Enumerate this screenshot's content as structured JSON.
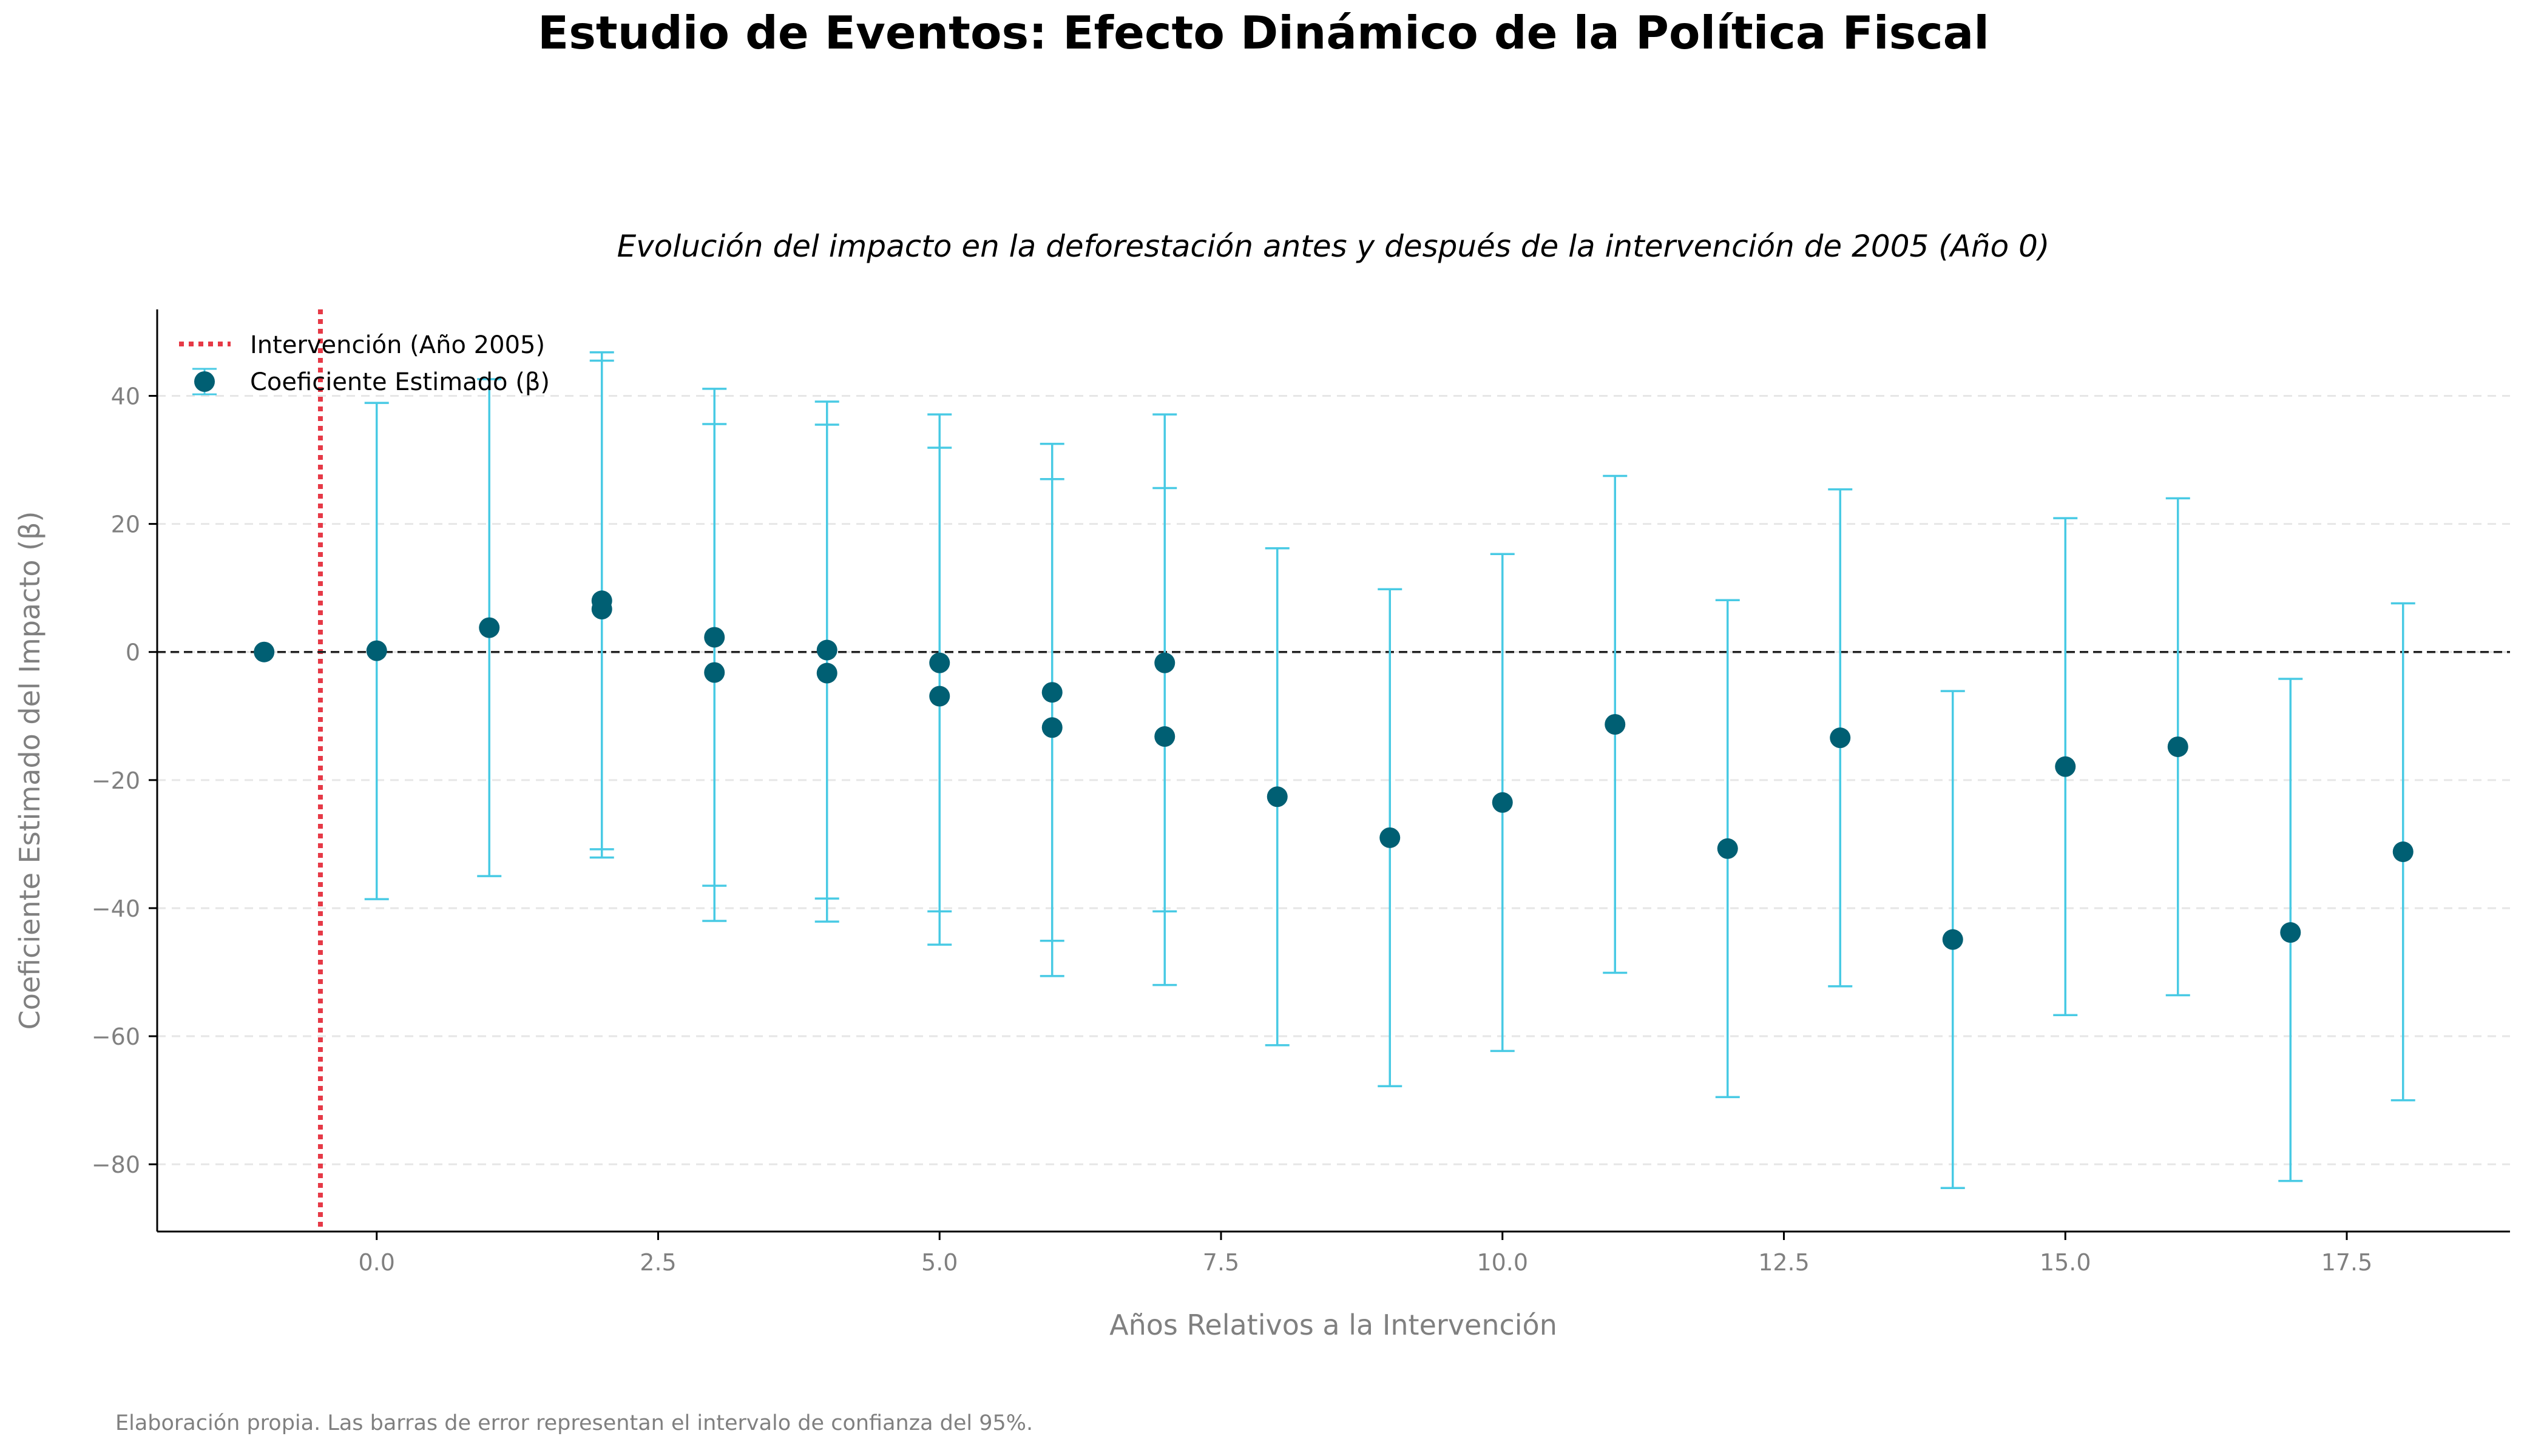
{
  "figure": {
    "title": "Estudio de Eventos: Efecto Dinámico de la Política Fiscal",
    "footnote": "Elaboración propia. Las barras de error representan el intervalo de confianza del 95%."
  },
  "colors": {
    "point": "#005f73",
    "errorbar": "#48cae4",
    "intervention": "#e63946",
    "zero_line": "#222222",
    "grid": "#e6e6e6",
    "axis_text": "#808080"
  },
  "chart_data": {
    "type": "scatter",
    "title": "Evolución del impacto en la deforestación antes y después de la intervención de 2005 (Año 0)",
    "xlabel": "Años Relativos a la Intervención",
    "ylabel": "Coeficiente Estimado del Impacto (β)",
    "xlim": [
      -1.95,
      18.95
    ],
    "ylim": [
      -90.5,
      53.5
    ],
    "xticks": [
      0,
      2.5,
      5,
      7.5,
      10,
      12.5,
      15,
      17.5
    ],
    "xtick_labels": [
      "0.0",
      "2.5",
      "5.0",
      "7.5",
      "10.0",
      "12.5",
      "15.0",
      "17.5"
    ],
    "yticks": [
      -80,
      -60,
      -40,
      -20,
      0,
      20,
      40
    ],
    "ytick_labels": [
      "−80",
      "−60",
      "−40",
      "−20",
      "0",
      "20",
      "40"
    ],
    "grid": "horizontal dashed",
    "legend_position": "top-left",
    "reference_lines": [
      {
        "name": "Intervención (Año 2005)",
        "axis": "x",
        "value": -0.5,
        "style": "dotted"
      },
      {
        "axis": "y",
        "value": 0,
        "style": "dashed"
      }
    ],
    "series": [
      {
        "name": "Coeficiente Estimado (β)",
        "points": [
          {
            "x": -1,
            "y": 0,
            "lo": null,
            "hi": null
          },
          {
            "x": 0,
            "y": 0.2,
            "lo": -38.6,
            "hi": 38.9
          },
          {
            "x": 1,
            "y": 3.8,
            "lo": -35.0,
            "hi": 42.6
          },
          {
            "x": 2,
            "y": 8.0,
            "lo": -30.8,
            "hi": 46.8
          },
          {
            "x": 2,
            "y": 6.7,
            "lo": -32.1,
            "hi": 45.5
          },
          {
            "x": 3,
            "y": 2.3,
            "lo": -36.5,
            "hi": 41.1
          },
          {
            "x": 3,
            "y": -3.2,
            "lo": -42.0,
            "hi": 35.6
          },
          {
            "x": 4,
            "y": 0.3,
            "lo": -38.5,
            "hi": 39.1
          },
          {
            "x": 4,
            "y": -3.3,
            "lo": -42.1,
            "hi": 35.5
          },
          {
            "x": 5,
            "y": -1.7,
            "lo": -40.5,
            "hi": 37.1
          },
          {
            "x": 5,
            "y": -6.9,
            "lo": -45.7,
            "hi": 31.9
          },
          {
            "x": 6,
            "y": -6.3,
            "lo": -45.1,
            "hi": 32.5
          },
          {
            "x": 6,
            "y": -11.8,
            "lo": -50.6,
            "hi": 27.0
          },
          {
            "x": 7,
            "y": -1.7,
            "lo": -40.5,
            "hi": 37.1
          },
          {
            "x": 7,
            "y": -13.2,
            "lo": -52.0,
            "hi": 25.6
          },
          {
            "x": 8,
            "y": -22.6,
            "lo": -61.4,
            "hi": 16.2
          },
          {
            "x": 9,
            "y": -29.0,
            "lo": -67.8,
            "hi": 9.8
          },
          {
            "x": 10,
            "y": -23.5,
            "lo": -62.3,
            "hi": 15.3
          },
          {
            "x": 11,
            "y": -11.3,
            "lo": -50.1,
            "hi": 27.5
          },
          {
            "x": 12,
            "y": -30.7,
            "lo": -69.5,
            "hi": 8.1
          },
          {
            "x": 13,
            "y": -13.4,
            "lo": -52.2,
            "hi": 25.4
          },
          {
            "x": 14,
            "y": -44.9,
            "lo": -83.7,
            "hi": -6.1
          },
          {
            "x": 15,
            "y": -17.9,
            "lo": -56.7,
            "hi": 20.9
          },
          {
            "x": 16,
            "y": -14.8,
            "lo": -53.6,
            "hi": 24.0
          },
          {
            "x": 17,
            "y": -43.8,
            "lo": -82.6,
            "hi": -4.2
          },
          {
            "x": 18,
            "y": -31.2,
            "lo": -70.0,
            "hi": 7.6
          }
        ]
      }
    ]
  }
}
